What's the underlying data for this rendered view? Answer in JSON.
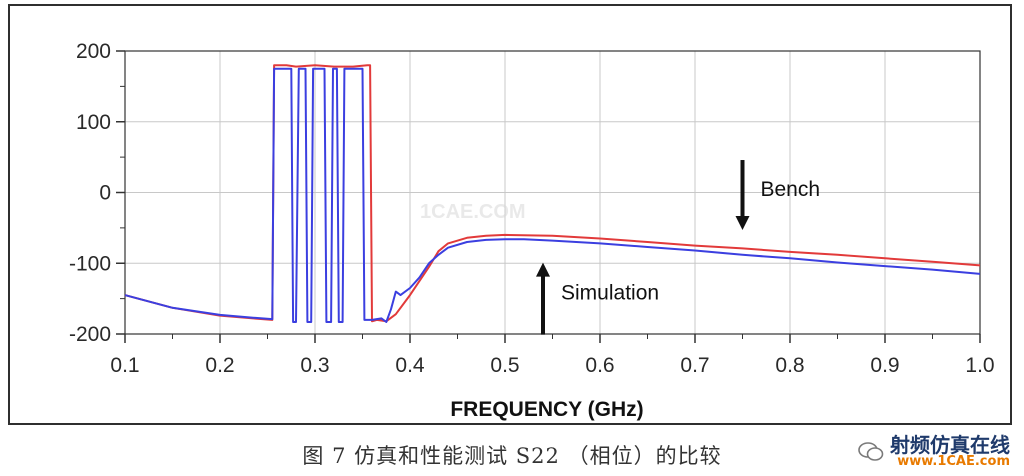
{
  "chart_data": {
    "type": "line",
    "title": "",
    "xlabel": "FREQUENCY (GHz)",
    "ylabel": "",
    "xlim": [
      0.1,
      1.0
    ],
    "ylim": [
      -200,
      200
    ],
    "grid": true,
    "x_ticks": [
      0.1,
      0.2,
      0.3,
      0.4,
      0.5,
      0.6,
      0.7,
      0.8,
      0.9,
      1.0
    ],
    "x_tick_labels": [
      "0.1",
      "0.2",
      "0.3",
      "0.4",
      "0.5",
      "0.6",
      "0.7",
      "0.8",
      "0.9",
      "1.0"
    ],
    "y_ticks": [
      200,
      100,
      0,
      -100,
      -200
    ],
    "y_tick_labels": [
      "200",
      "100",
      "0",
      "-100",
      "-200"
    ],
    "series": [
      {
        "name": "Bench",
        "color": "#e23a3a",
        "points": [
          [
            0.1,
            -145
          ],
          [
            0.15,
            -163
          ],
          [
            0.2,
            -174
          ],
          [
            0.235,
            -178
          ],
          [
            0.255,
            -180
          ],
          [
            0.257,
            180
          ],
          [
            0.26,
            180
          ],
          [
            0.27,
            180
          ],
          [
            0.28,
            178
          ],
          [
            0.3,
            180
          ],
          [
            0.32,
            178
          ],
          [
            0.34,
            178
          ],
          [
            0.355,
            180
          ],
          [
            0.358,
            180
          ],
          [
            0.36,
            -182
          ],
          [
            0.365,
            -180
          ],
          [
            0.375,
            -182
          ],
          [
            0.385,
            -172
          ],
          [
            0.4,
            -145
          ],
          [
            0.42,
            -105
          ],
          [
            0.43,
            -83
          ],
          [
            0.44,
            -72
          ],
          [
            0.46,
            -64
          ],
          [
            0.48,
            -61
          ],
          [
            0.5,
            -60
          ],
          [
            0.55,
            -61
          ],
          [
            0.6,
            -65
          ],
          [
            0.65,
            -70
          ],
          [
            0.7,
            -75
          ],
          [
            0.75,
            -79
          ],
          [
            0.8,
            -84
          ],
          [
            0.85,
            -88
          ],
          [
            0.9,
            -93
          ],
          [
            0.95,
            -98
          ],
          [
            1.0,
            -103
          ]
        ]
      },
      {
        "name": "Simulation",
        "color": "#3b3fe0",
        "points": [
          [
            0.1,
            -145
          ],
          [
            0.15,
            -163
          ],
          [
            0.2,
            -173
          ],
          [
            0.235,
            -177
          ],
          [
            0.255,
            -179
          ],
          [
            0.257,
            175
          ],
          [
            0.275,
            175
          ],
          [
            0.277,
            -183
          ],
          [
            0.28,
            -183
          ],
          [
            0.283,
            175
          ],
          [
            0.29,
            175
          ],
          [
            0.292,
            -183
          ],
          [
            0.296,
            -183
          ],
          [
            0.298,
            175
          ],
          [
            0.31,
            175
          ],
          [
            0.312,
            -183
          ],
          [
            0.317,
            -183
          ],
          [
            0.319,
            175
          ],
          [
            0.323,
            175
          ],
          [
            0.325,
            -183
          ],
          [
            0.329,
            -183
          ],
          [
            0.331,
            175
          ],
          [
            0.35,
            175
          ],
          [
            0.352,
            -180
          ],
          [
            0.36,
            -180
          ],
          [
            0.37,
            -178
          ],
          [
            0.375,
            -183
          ],
          [
            0.38,
            -165
          ],
          [
            0.385,
            -140
          ],
          [
            0.39,
            -145
          ],
          [
            0.4,
            -135
          ],
          [
            0.41,
            -120
          ],
          [
            0.42,
            -100
          ],
          [
            0.43,
            -88
          ],
          [
            0.44,
            -78
          ],
          [
            0.46,
            -70
          ],
          [
            0.48,
            -67
          ],
          [
            0.5,
            -66
          ],
          [
            0.52,
            -66
          ],
          [
            0.55,
            -68
          ],
          [
            0.6,
            -72
          ],
          [
            0.65,
            -77
          ],
          [
            0.7,
            -82
          ],
          [
            0.75,
            -88
          ],
          [
            0.8,
            -93
          ],
          [
            0.85,
            -99
          ],
          [
            0.9,
            -104
          ],
          [
            0.95,
            -109
          ],
          [
            1.0,
            -115
          ]
        ]
      }
    ],
    "annotations": [
      {
        "text": "Bench",
        "arrow": "down",
        "x": 0.75,
        "y": -70
      },
      {
        "text": "Simulation",
        "arrow": "up",
        "x": 0.54,
        "y": -85
      }
    ]
  },
  "caption": "图 7  仿真和性能测试 S22 （相位）的比较",
  "watermark": {
    "line1": "射频仿真在线",
    "line2": "www.1CAE.com",
    "background_text": "1CAE.COM"
  },
  "colors": {
    "bench": "#e23a3a",
    "simulation": "#3b3fe0",
    "grid": "#c8c8c8",
    "axis": "#333333"
  }
}
